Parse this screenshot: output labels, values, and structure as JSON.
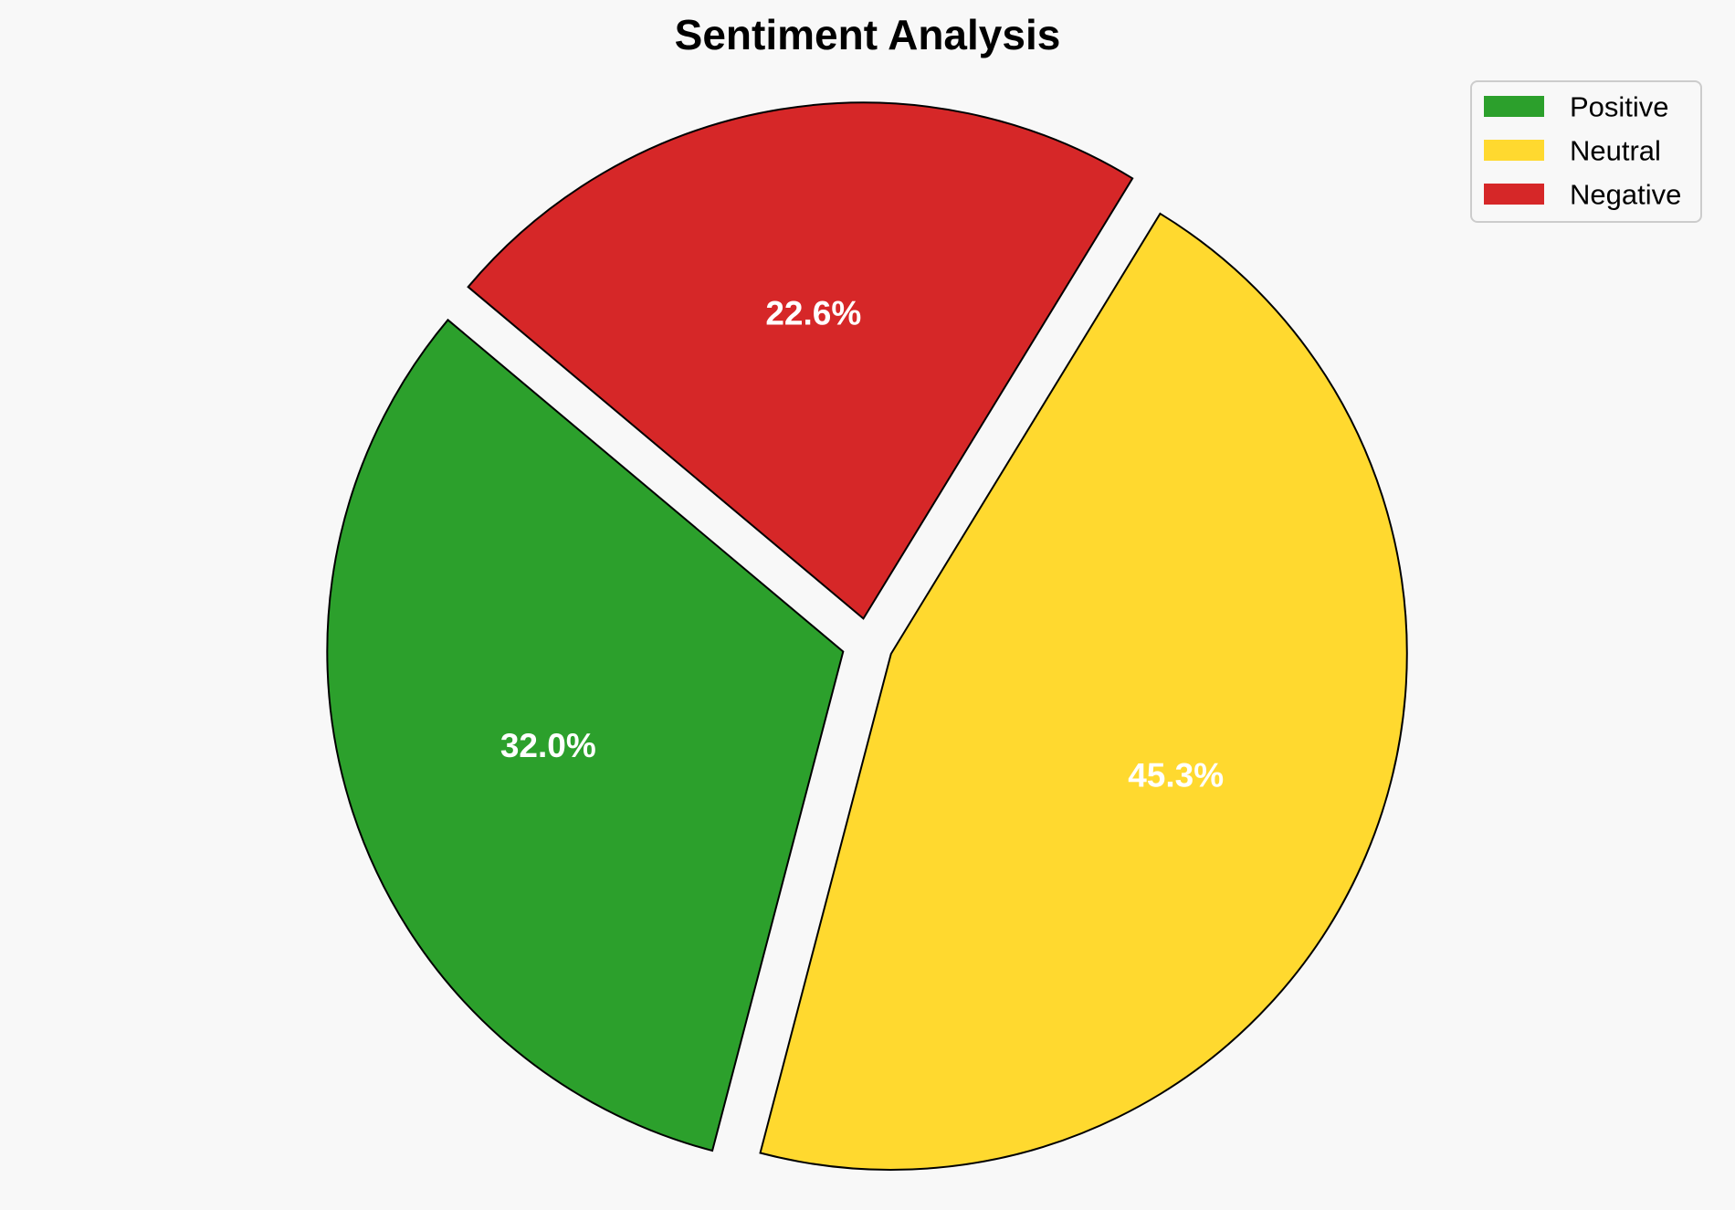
{
  "chart_data": {
    "type": "pie",
    "title": "Sentiment Analysis",
    "categories": [
      "Positive",
      "Neutral",
      "Negative"
    ],
    "values": [
      32.0,
      45.3,
      22.6
    ],
    "value_labels": [
      "32.0%",
      "45.3%",
      "22.6%"
    ],
    "colors": [
      "#2ca02c",
      "#ffd92f",
      "#d62728"
    ],
    "edge_color": "#000000",
    "label_color": "#ffffff",
    "start_angle_deg": 140,
    "direction": "counterclockwise",
    "exploded": true,
    "legend": {
      "placement": "top-right",
      "entries": [
        "Positive",
        "Neutral",
        "Negative"
      ]
    }
  }
}
